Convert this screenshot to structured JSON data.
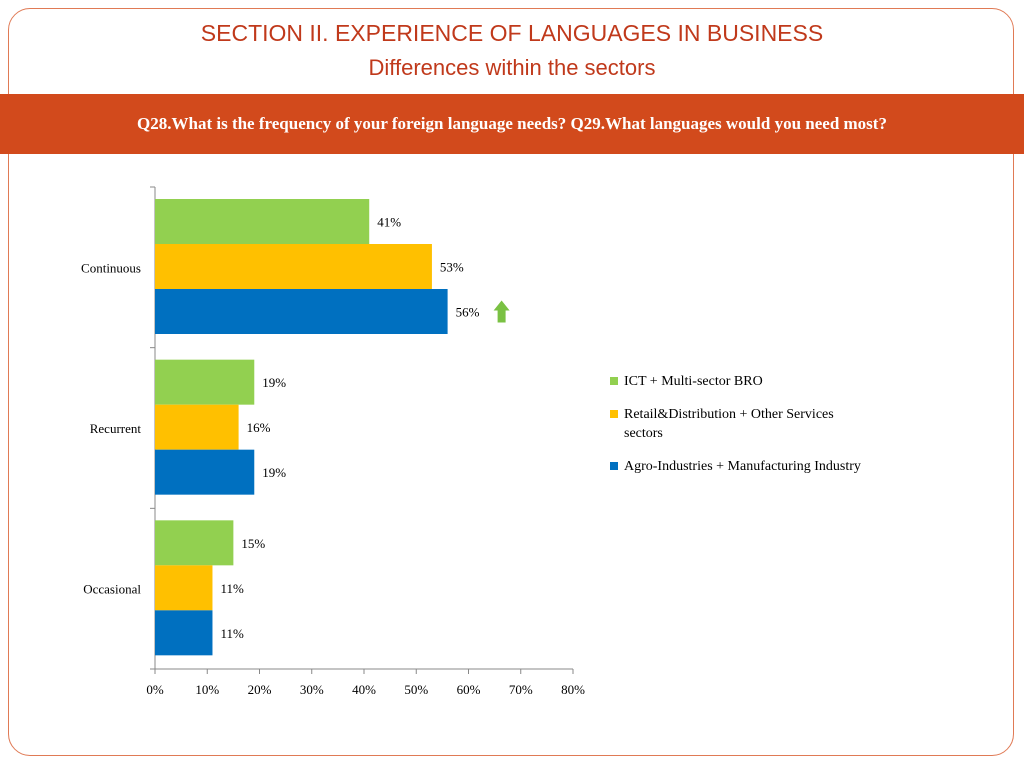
{
  "header": {
    "title": "SECTION II. EXPERIENCE OF LANGUAGES IN BUSINESS",
    "subtitle": "Differences within the sectors"
  },
  "banner": {
    "question": "Q28.What is the frequency of your foreign language needs? Q29.What languages would you need most?"
  },
  "chart_data": {
    "type": "bar",
    "orientation": "horizontal",
    "categories": [
      "Continuous",
      "Recurrent",
      "Occasional"
    ],
    "series": [
      {
        "name": "ICT + Multi-sector BRO",
        "color": "#92d050",
        "values": [
          41,
          19,
          15
        ]
      },
      {
        "name": "Retail&Distribution + Other Services sectors",
        "color": "#ffc000",
        "values": [
          53,
          16,
          11
        ]
      },
      {
        "name": "Agro-Industries + Manufacturing Industry",
        "color": "#0070c0",
        "values": [
          56,
          19,
          11
        ]
      }
    ],
    "value_suffix": "%",
    "xlim": [
      0,
      80
    ],
    "xticks": [
      0,
      10,
      20,
      30,
      40,
      50,
      60,
      70,
      80
    ],
    "grid": false,
    "legend_position": "right",
    "annotations": [
      {
        "type": "up-arrow-icon",
        "color": "#7ac143",
        "category": "Continuous",
        "series_index": 2
      }
    ]
  }
}
